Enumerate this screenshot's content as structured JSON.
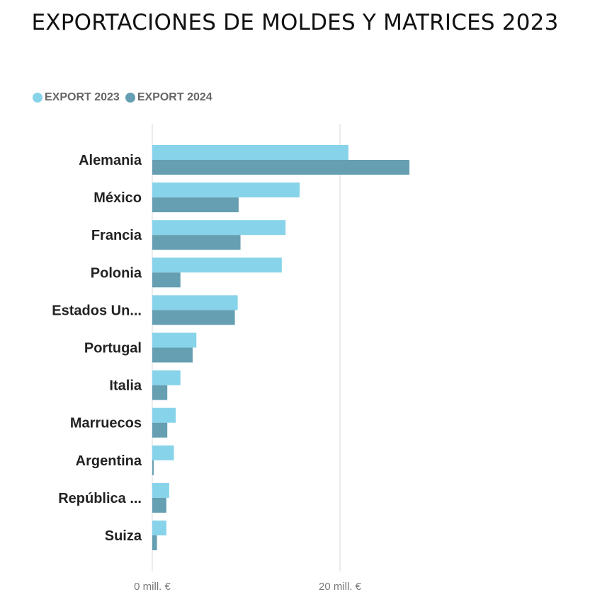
{
  "chart_data": {
    "type": "bar",
    "orientation": "horizontal",
    "title": "EXPORTACIONES DE MOLDES Y MATRICES 2023",
    "categories": [
      "Alemania",
      "México",
      "Francia",
      "Polonia",
      "Estados Un...",
      "Portugal",
      "Italia",
      "Marruecos",
      "Argentina",
      "República ...",
      "Suiza"
    ],
    "series": [
      {
        "name": "EXPORT 2023",
        "color": "#87d3ea",
        "values": [
          20.9,
          15.7,
          14.2,
          13.8,
          9.1,
          4.7,
          3.0,
          2.5,
          2.3,
          1.8,
          1.5
        ]
      },
      {
        "name": "EXPORT 2024",
        "color": "#669fb2",
        "values": [
          27.4,
          9.2,
          9.4,
          3.0,
          8.8,
          4.3,
          1.6,
          1.6,
          0.15,
          1.5,
          0.5
        ]
      }
    ],
    "xlim": [
      0,
      30
    ],
    "xticks": [
      {
        "value": 0,
        "label": "0 mill. €"
      },
      {
        "value": 20,
        "label": "20 mill. €"
      }
    ],
    "grid": true,
    "legend_position": "top-left"
  }
}
